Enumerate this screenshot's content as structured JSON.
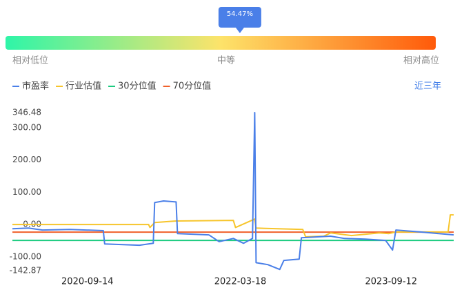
{
  "gauge": {
    "value": 54.47,
    "value_label": "54.47%",
    "labels": [
      "相对低位",
      "中等",
      "相对高位"
    ]
  },
  "range_link": "近三年",
  "chart_data": {
    "type": "line",
    "xlim": [
      "2019-12-19",
      "2024-04-29"
    ],
    "xticks": [
      "2020-09-14",
      "2022-03-18",
      "2023-09-12"
    ],
    "ylim": [
      -142.87,
      346.48
    ],
    "yticks": [
      346.48,
      {
        "value": 300,
        "label": "300.00"
      },
      {
        "value": 200,
        "label": "200.00"
      },
      {
        "value": 100,
        "label": "100.00"
      },
      {
        "value": 0,
        "label": "0.00"
      },
      {
        "value": -100,
        "label": "-100.00"
      },
      -142.87
    ],
    "series": [
      {
        "name": "市盈率",
        "color": "#4a7fe8",
        "x": [
          "2019-12-19",
          "2020-02-15",
          "2020-04-05",
          "2020-07-13",
          "2020-11-10",
          "2020-11-15",
          "2021-03-20",
          "2021-05-09",
          "2021-05-14",
          "2021-06-15",
          "2021-07-30",
          "2021-08-04",
          "2021-11-25",
          "2022-01-01",
          "2022-02-21",
          "2022-03-30",
          "2022-05-01",
          "2022-05-09",
          "2022-05-14",
          "2022-06-25",
          "2022-08-07",
          "2022-08-22",
          "2022-10-16",
          "2022-10-24",
          "2023-02-06",
          "2023-03-28",
          "2023-06-11",
          "2023-08-23",
          "2023-09-17",
          "2023-09-29",
          "2023-12-26",
          "2024-04-24"
        ],
        "values": [
          -13,
          -11,
          -17,
          -15,
          -19,
          -60,
          -64,
          -58,
          68,
          73,
          70,
          -28,
          -32,
          -53,
          -43,
          -58,
          -43,
          346.48,
          -118,
          -124,
          -139,
          -111,
          -107,
          -41,
          -36,
          -43,
          -45,
          -49,
          -79,
          -17,
          -23,
          -32
        ]
      },
      {
        "name": "行业估值",
        "color": "#f7c52b",
        "x": [
          "2019-12-19",
          "2021-04-22",
          "2021-04-27",
          "2021-05-14",
          "2021-07-30",
          "2022-02-21",
          "2022-03-01",
          "2022-05-09",
          "2022-05-14",
          "2022-10-29",
          "2022-11-08",
          "2023-01-12",
          "2023-02-06",
          "2023-04-22",
          "2023-07-31",
          "2023-09-04",
          "2023-09-29",
          "2024-04-04",
          "2024-04-12",
          "2024-04-24"
        ],
        "values": [
          0,
          0,
          -9,
          6,
          11,
          13,
          -9,
          17,
          -11,
          -15,
          -38,
          -36,
          -26,
          -34,
          -26,
          -28,
          -23,
          -23,
          30,
          30
        ]
      },
      {
        "name": "30分位值",
        "color": "#1ccb80",
        "x": [
          "2019-12-19",
          "2024-04-24"
        ],
        "values": [
          -49,
          -49
        ]
      },
      {
        "name": "70分位值",
        "color": "#f0602a",
        "x": [
          "2019-12-19",
          "2024-04-24"
        ],
        "values": [
          -23.5,
          -23.5
        ]
      }
    ]
  }
}
